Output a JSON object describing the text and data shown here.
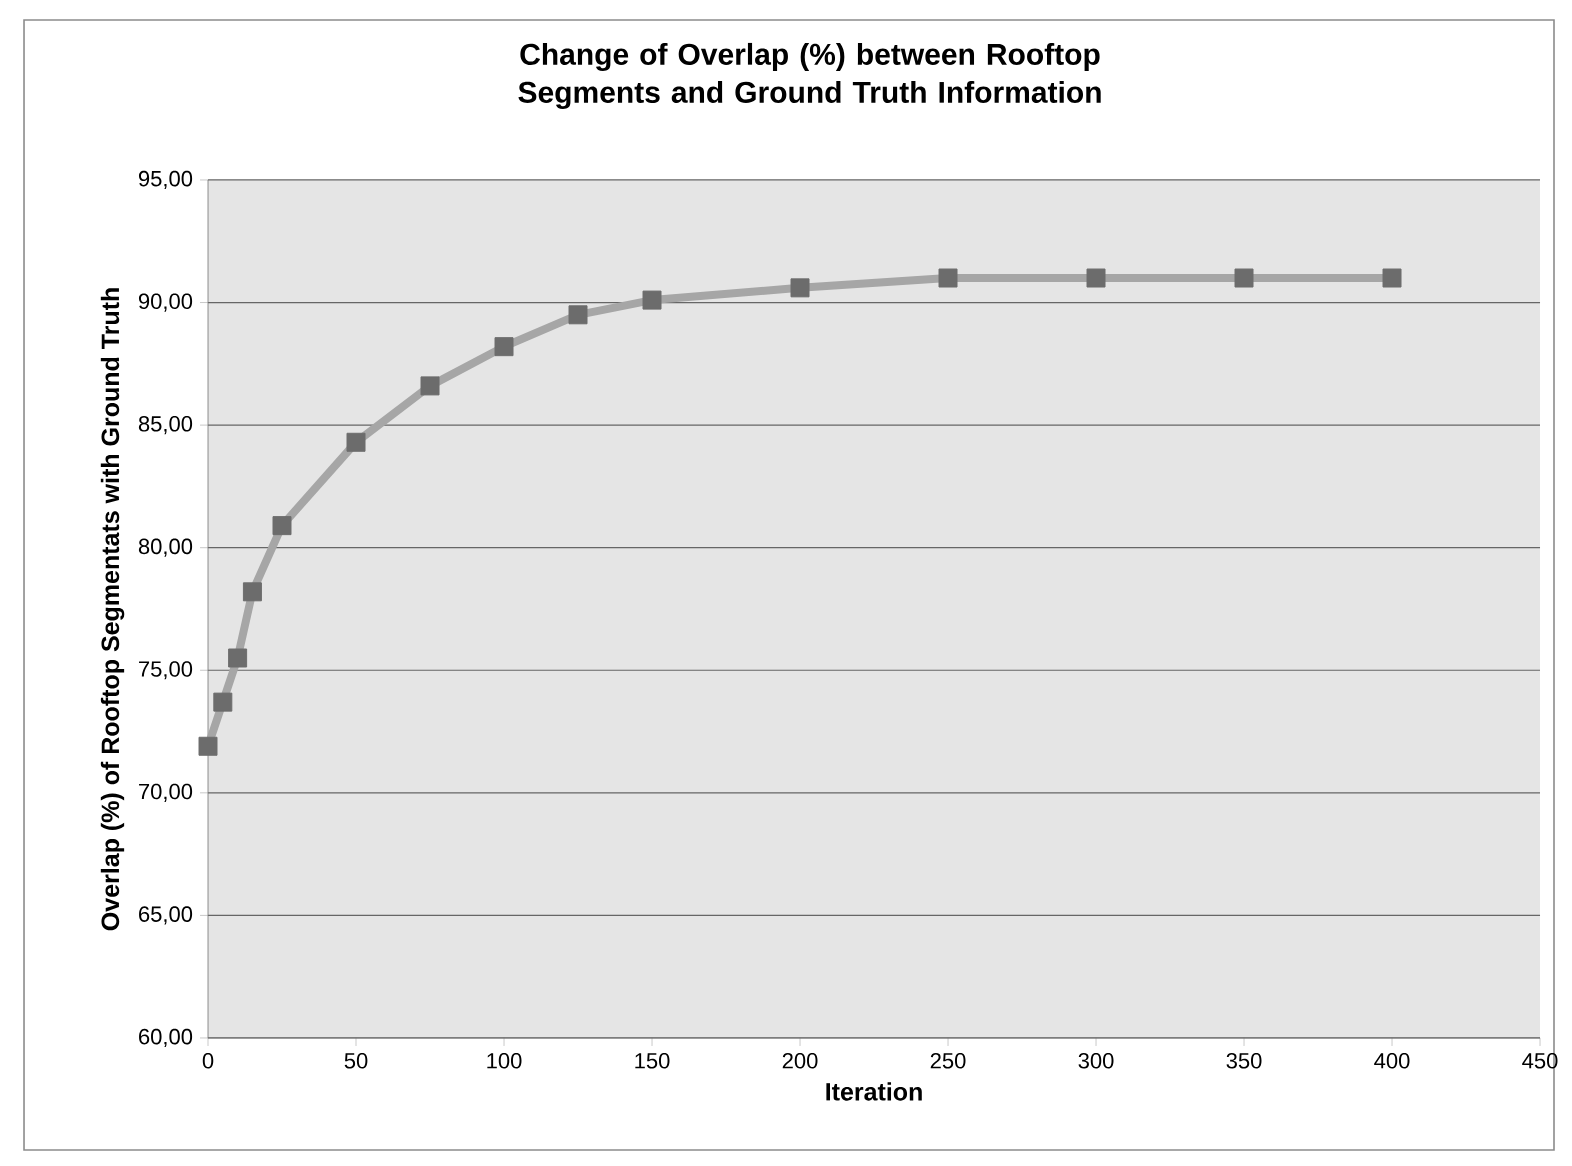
{
  "chart_data": {
    "type": "line",
    "title": "Change of Overlap (%) between Rooftop Segments and Ground Truth Information",
    "xlabel": "Iteration",
    "ylabel": "Overlap (%) of Rooftop Segmentats with Ground Truth",
    "x": [
      0,
      5,
      10,
      15,
      25,
      50,
      75,
      100,
      125,
      150,
      200,
      250,
      300,
      350,
      400
    ],
    "series": [
      {
        "color": "#a6a6a6",
        "values": [
          71.9,
          73.7,
          75.5,
          78.2,
          80.9,
          84.3,
          86.6,
          88.2,
          89.5,
          90.1,
          90.6,
          91.0,
          91.0,
          91.0,
          91.0
        ]
      }
    ],
    "xlim": [
      0,
      450
    ],
    "xticks": [
      0,
      50,
      100,
      150,
      200,
      250,
      300,
      350,
      400,
      450
    ],
    "ylim": [
      60,
      95
    ],
    "yticks": [
      {
        "value": 60,
        "label": "60,00"
      },
      {
        "value": 65,
        "label": "65,00"
      },
      {
        "value": 70,
        "label": "70,00"
      },
      {
        "value": 75,
        "label": "75,00"
      },
      {
        "value": 80,
        "label": "80,00"
      },
      {
        "value": 85,
        "label": "85,00"
      },
      {
        "value": 90,
        "label": "90,00"
      },
      {
        "value": 95,
        "label": "95,00"
      }
    ],
    "grid": "y",
    "marker": "square",
    "line_style": "solid"
  }
}
